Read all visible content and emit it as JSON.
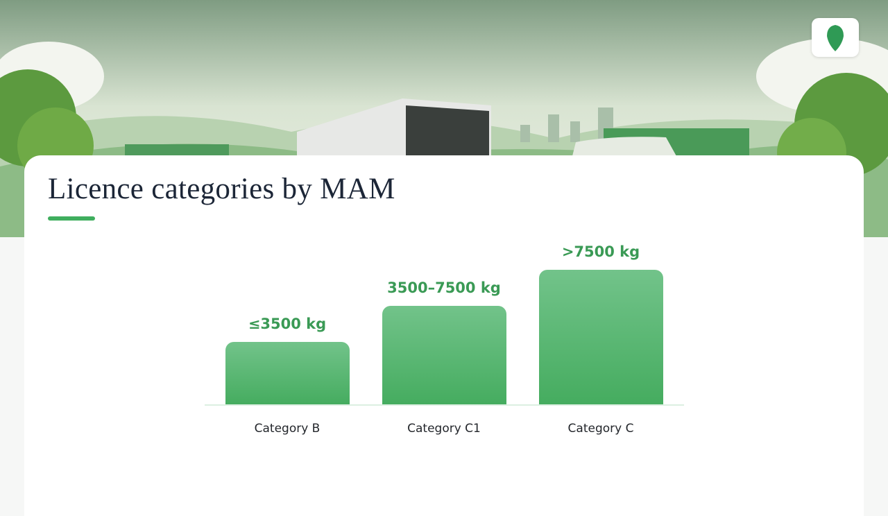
{
  "slide": {
    "title": "Licence categories by MAM",
    "bars": [
      {
        "label": "Category B",
        "value_label": "≤3500 kg"
      },
      {
        "label": "Category C1",
        "value_label": "3500–7500 kg"
      },
      {
        "label": "Category C",
        "value_label": ">7500 kg"
      }
    ]
  }
}
